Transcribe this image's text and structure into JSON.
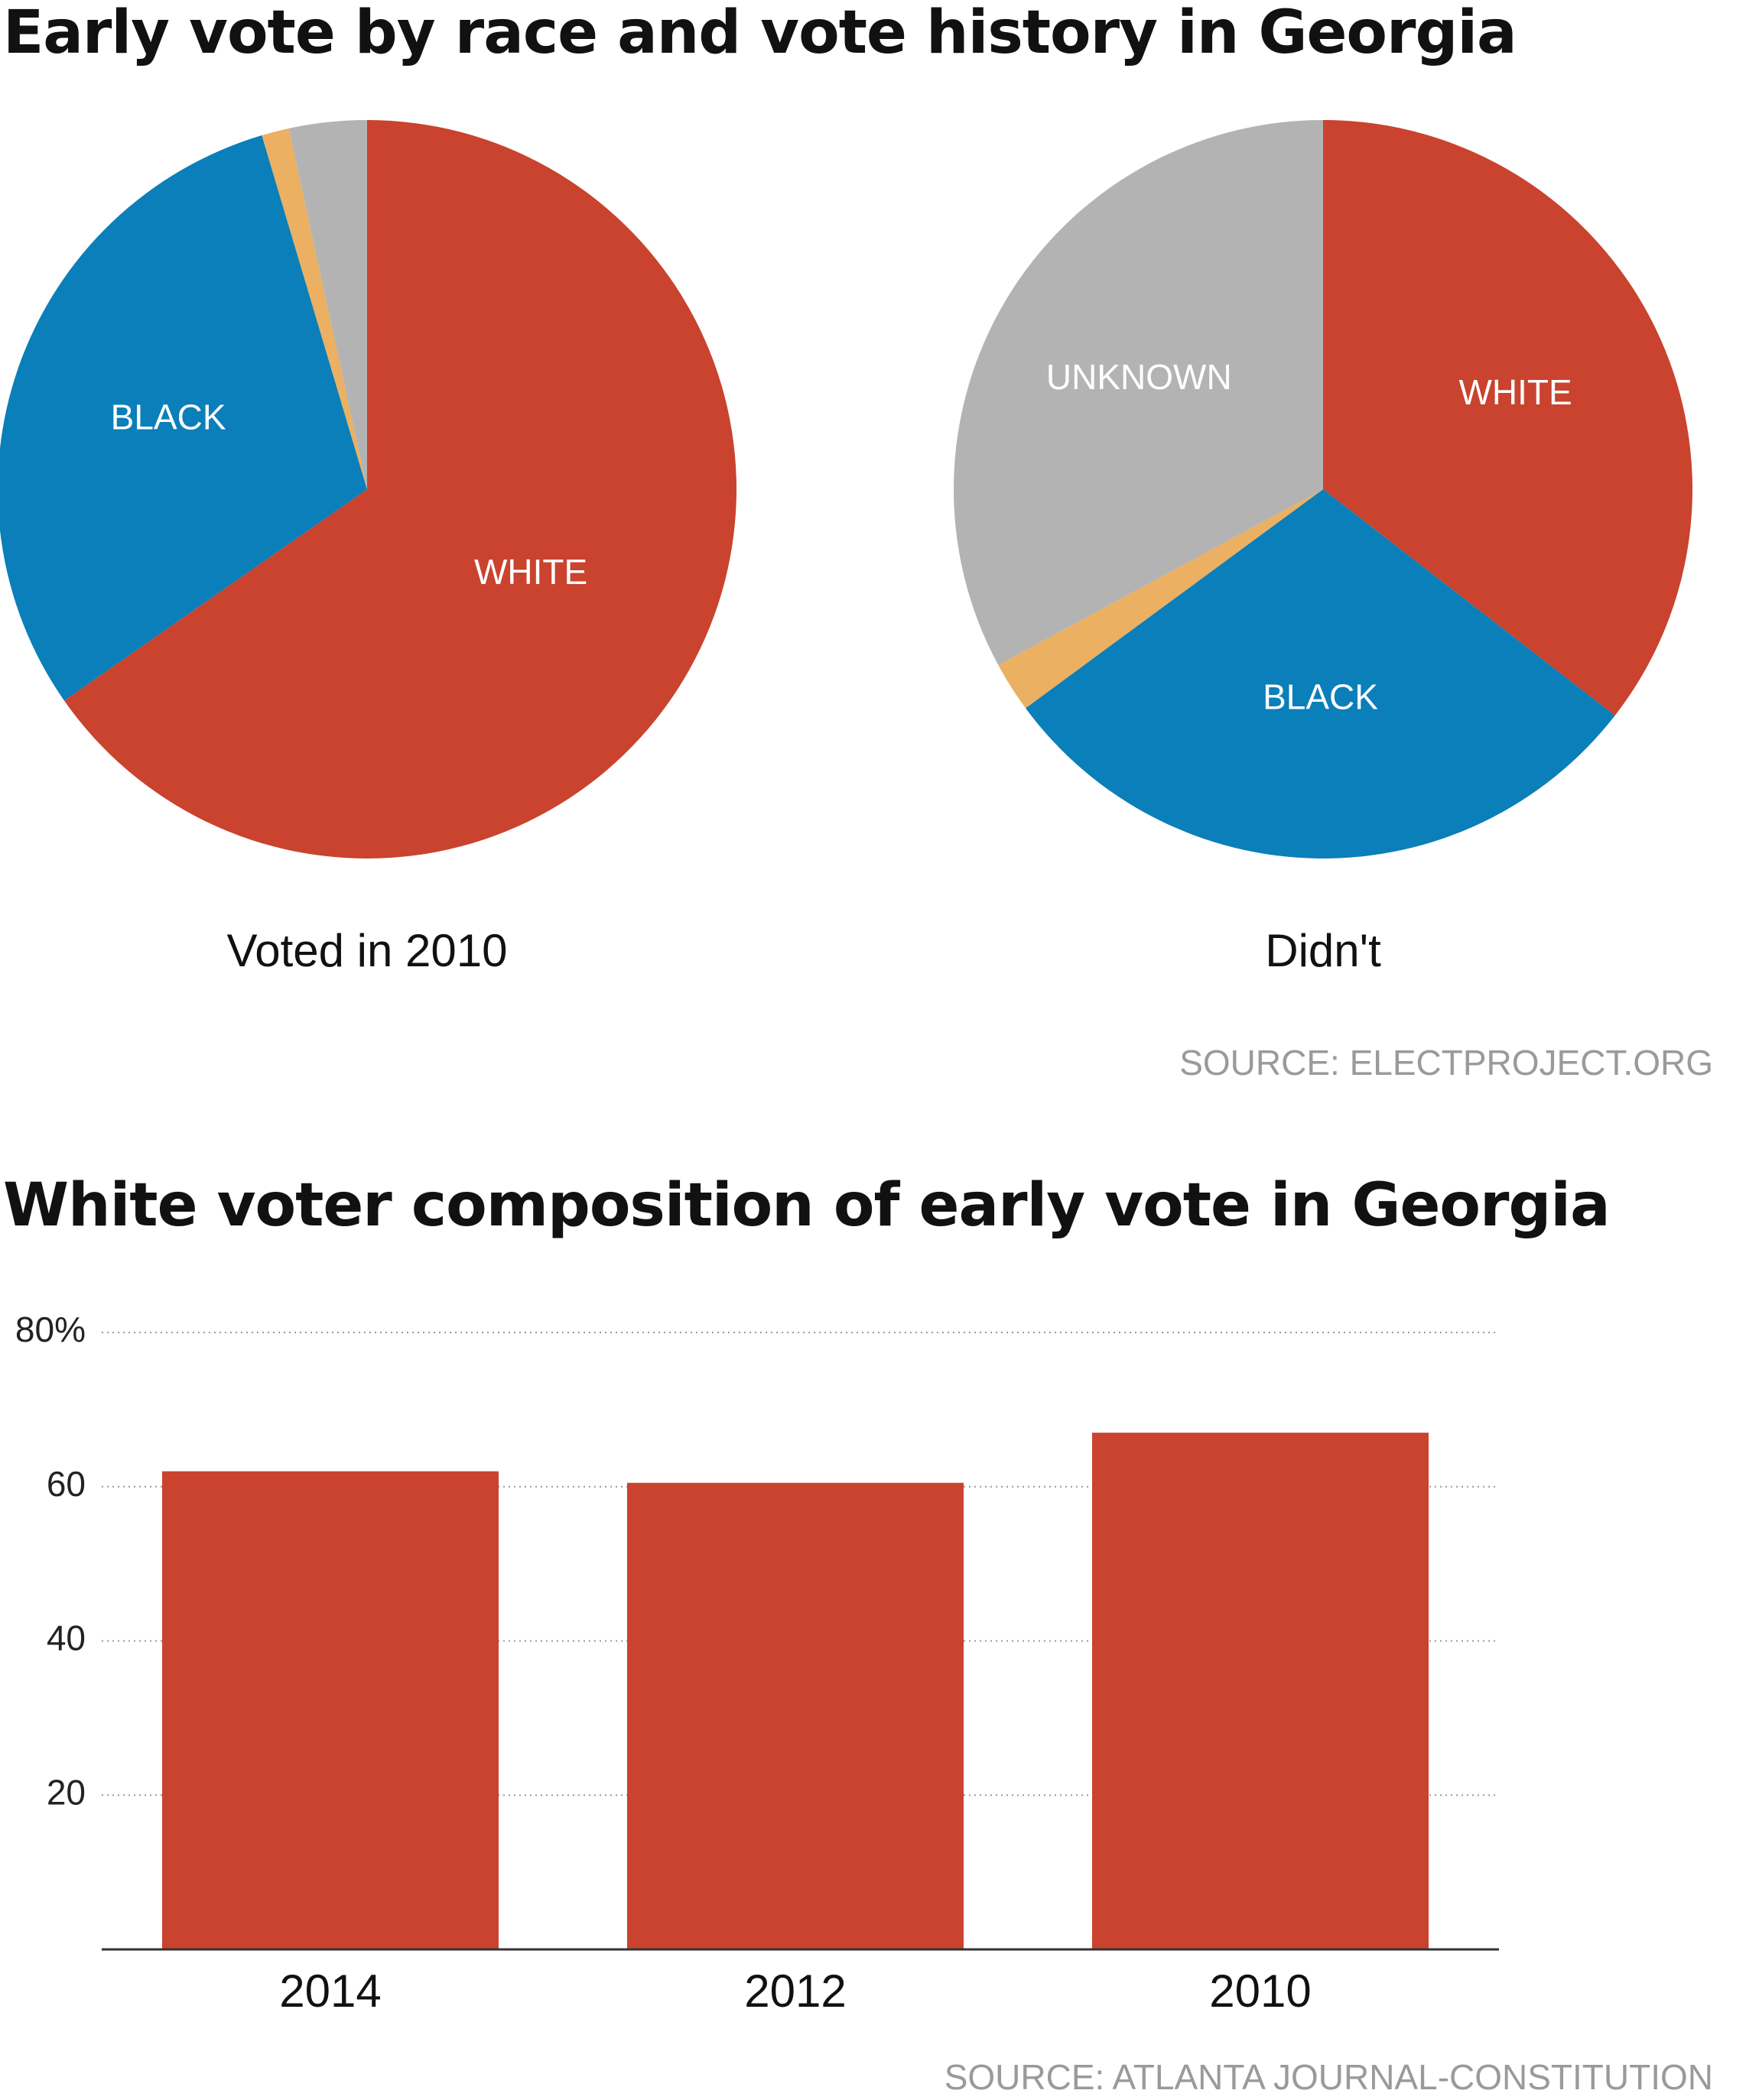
{
  "header": {
    "title": "Early vote by race and vote history in Georgia"
  },
  "pies": {
    "source": "SOURCE: ELECTPROJECT.ORG"
  },
  "bar_section": {
    "title": "White voter composition of early vote in Georgia",
    "source": "SOURCE: ATLANTA JOURNAL-CONSTITUTION"
  },
  "colors": {
    "white": "#c9432e",
    "black": "#0a7fb9",
    "other": "#ebb061",
    "unknown": "#b3b3b3",
    "bar": "#c9432e",
    "grid": "#999999",
    "axis": "#333333"
  },
  "chart_data": [
    {
      "type": "pie",
      "caption": "Voted in 2010",
      "slices": [
        {
          "label": "WHITE",
          "value": 65.3,
          "color_key": "white"
        },
        {
          "label": "BLACK",
          "value": 30.1,
          "color_key": "black"
        },
        {
          "label": "",
          "value": 1.2,
          "color_key": "other"
        },
        {
          "label": "",
          "value": 3.4,
          "color_key": "unknown"
        }
      ]
    },
    {
      "type": "pie",
      "caption": "Didn't",
      "slices": [
        {
          "label": "WHITE",
          "value": 35.5,
          "color_key": "white"
        },
        {
          "label": "BLACK",
          "value": 29.4,
          "color_key": "black"
        },
        {
          "label": "",
          "value": 2.2,
          "color_key": "other"
        },
        {
          "label": "UNKNOWN",
          "value": 32.9,
          "color_key": "unknown"
        }
      ]
    },
    {
      "type": "bar",
      "categories": [
        "2014",
        "2012",
        "2010"
      ],
      "values": [
        62,
        60.5,
        67
      ],
      "ylim": [
        0,
        80
      ],
      "yticks": [
        20,
        40,
        60,
        80
      ],
      "ytick_labels": [
        "20",
        "40",
        "60",
        "80%"
      ],
      "xlabel": "",
      "ylabel": "",
      "grid": true
    }
  ]
}
